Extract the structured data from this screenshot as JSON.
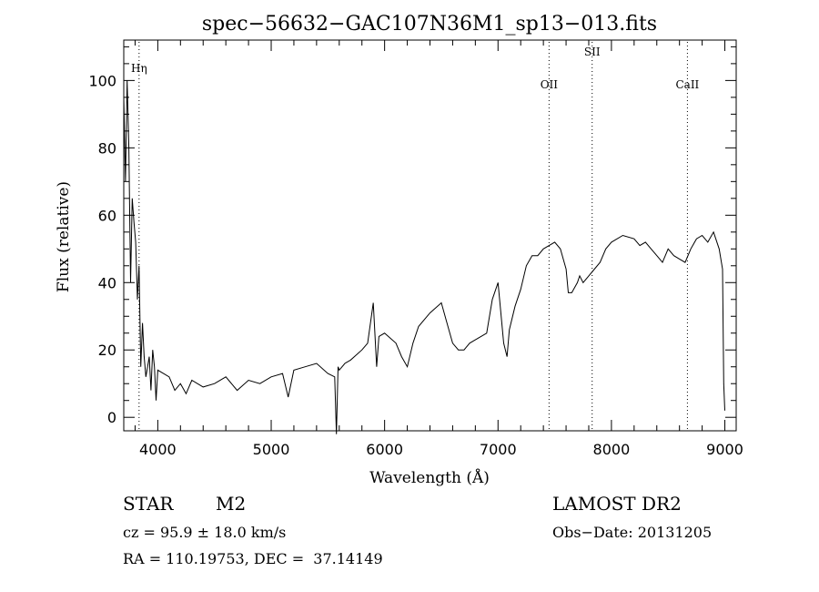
{
  "chart_data": {
    "type": "line",
    "title": "spec−56632−GAC107N36M1_sp13−013.fits",
    "xlabel": "Wavelength (Å)",
    "ylabel": "Flux (relative)",
    "xlim": [
      3700,
      9100
    ],
    "ylim": [
      -4,
      112
    ],
    "xticks": [
      4000,
      5000,
      6000,
      7000,
      8000,
      9000
    ],
    "yticks": [
      0,
      20,
      40,
      60,
      80,
      100
    ],
    "grid": false,
    "line_color": "#000000",
    "series": [
      {
        "x": [
          3700,
          3715,
          3730,
          3745,
          3760,
          3775,
          3790,
          3805,
          3820,
          3835,
          3850,
          3865,
          3880,
          3895,
          3910,
          3925,
          3940,
          3955,
          3970,
          3985,
          4000,
          4050,
          4100,
          4150,
          4200,
          4250,
          4300,
          4400,
          4500,
          4600,
          4700,
          4800,
          4900,
          5000,
          5100,
          5150,
          5200,
          5300,
          5400,
          5500,
          5560,
          5575,
          5590,
          5600,
          5650,
          5700,
          5800,
          5850,
          5900,
          5930,
          5950,
          6000,
          6100,
          6150,
          6200,
          6250,
          6300,
          6400,
          6500,
          6550,
          6600,
          6650,
          6700,
          6750,
          6800,
          6900,
          6950,
          7000,
          7050,
          7080,
          7100,
          7150,
          7200,
          7250,
          7300,
          7350,
          7400,
          7450,
          7500,
          7550,
          7600,
          7620,
          7650,
          7700,
          7720,
          7750,
          7800,
          7850,
          7900,
          7950,
          8000,
          8100,
          8200,
          8250,
          8300,
          8350,
          8400,
          8450,
          8500,
          8550,
          8600,
          8650,
          8700,
          8750,
          8800,
          8850,
          8900,
          8950,
          8980,
          8990,
          9000
        ],
        "y": [
          95,
          70,
          100,
          80,
          40,
          65,
          58,
          52,
          35,
          45,
          15,
          28,
          18,
          12,
          15,
          18,
          8,
          20,
          15,
          5,
          14,
          13,
          12,
          8,
          10,
          7,
          11,
          9,
          10,
          12,
          8,
          11,
          10,
          12,
          13,
          6,
          14,
          15,
          16,
          13,
          12,
          -5,
          15,
          14,
          16,
          17,
          20,
          22,
          34,
          15,
          24,
          25,
          22,
          18,
          15,
          22,
          27,
          31,
          34,
          28,
          22,
          20,
          20,
          22,
          23,
          25,
          35,
          40,
          22,
          18,
          26,
          33,
          38,
          45,
          48,
          48,
          50,
          51,
          52,
          50,
          44,
          37,
          37,
          40,
          42,
          40,
          42,
          44,
          46,
          50,
          52,
          54,
          53,
          51,
          52,
          50,
          48,
          46,
          50,
          48,
          47,
          46,
          50,
          53,
          54,
          52,
          55,
          50,
          44,
          10,
          2
        ]
      }
    ],
    "annotations": [
      {
        "label": "Hη",
        "x": 3835
      },
      {
        "label": "OII",
        "x": 7450
      },
      {
        "label": "SII",
        "x": 7830
      },
      {
        "label": "CaII",
        "x": 8670
      }
    ]
  },
  "info": {
    "object_class": "STAR",
    "subclass": "M2",
    "survey": "LAMOST DR2",
    "cz": "cz = 95.9 ± 18.0 km/s",
    "obs_date": "Obs−Date: 20131205",
    "coords": "RA = 110.19753, DEC =  37.14149"
  }
}
